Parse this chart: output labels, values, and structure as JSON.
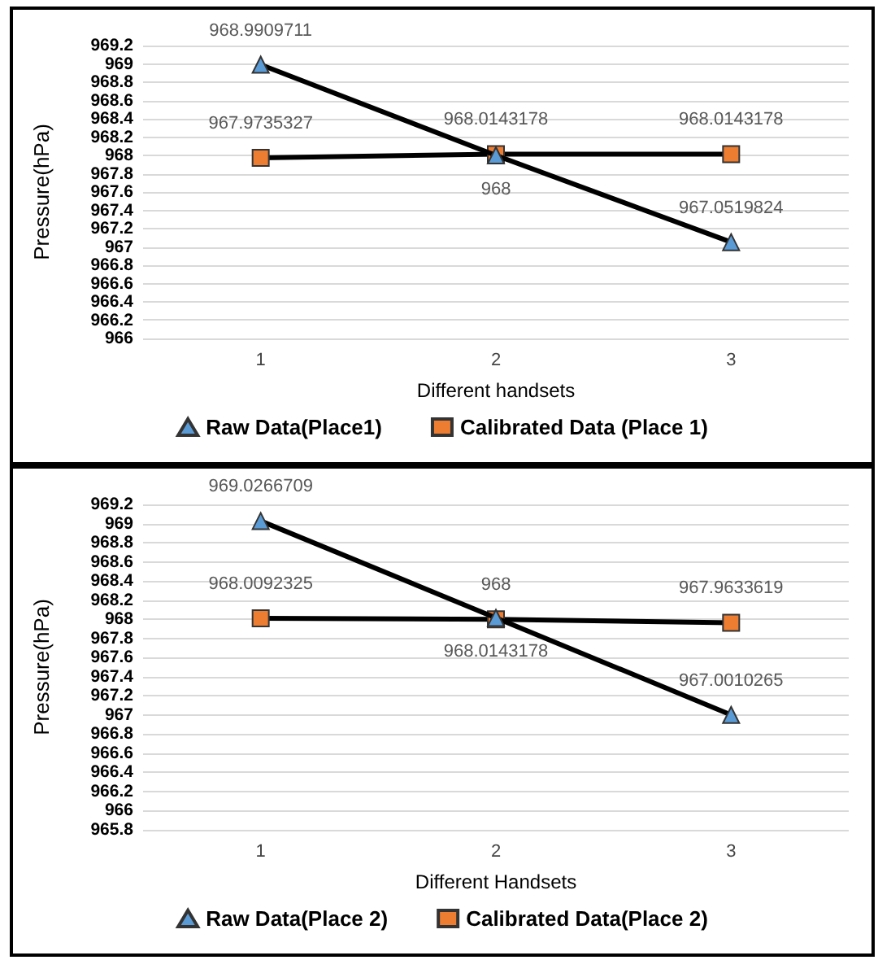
{
  "chart_data": [
    {
      "type": "line",
      "categories": [
        "1",
        "2",
        "3"
      ],
      "xlabel": "Different handsets",
      "ylabel": "Pressure(hPa)",
      "ylim": [
        966,
        969.2
      ],
      "yticks": [
        966,
        966.2,
        966.4,
        966.6,
        966.8,
        967,
        967.2,
        967.4,
        967.6,
        967.8,
        968,
        968.2,
        968.4,
        968.6,
        968.8,
        969,
        969.2
      ],
      "grid": "y",
      "legend": "bottom",
      "data_labels": true,
      "series": [
        {
          "name": "Raw Data(Place1)",
          "color": "#5b9bd5",
          "marker": "triangle",
          "values": [
            968.9909711,
            968,
            967.0519824
          ]
        },
        {
          "name": "Calibrated Data (Place 1)",
          "color": "#ed7d31",
          "marker": "square",
          "values": [
            967.9735327,
            968.0143178,
            968.0143178
          ]
        }
      ]
    },
    {
      "type": "line",
      "categories": [
        "1",
        "2",
        "3"
      ],
      "xlabel": "Different Handsets",
      "ylabel": "Pressure(hPa)",
      "ylim": [
        965.8,
        969.2
      ],
      "yticks": [
        965.8,
        966,
        966.2,
        966.4,
        966.6,
        966.8,
        967,
        967.2,
        967.4,
        967.6,
        967.8,
        968,
        968.2,
        968.4,
        968.6,
        968.8,
        969,
        969.2
      ],
      "grid": "y",
      "legend": "bottom",
      "data_labels": true,
      "series": [
        {
          "name": "Raw Data(Place 2)",
          "color": "#5b9bd5",
          "marker": "triangle",
          "values": [
            969.0266709,
            968.0143178,
            967.0010265
          ]
        },
        {
          "name": "Calibrated Data(Place 2)",
          "color": "#ed7d31",
          "marker": "square",
          "values": [
            968.0092325,
            968,
            967.9633619
          ]
        }
      ]
    }
  ]
}
